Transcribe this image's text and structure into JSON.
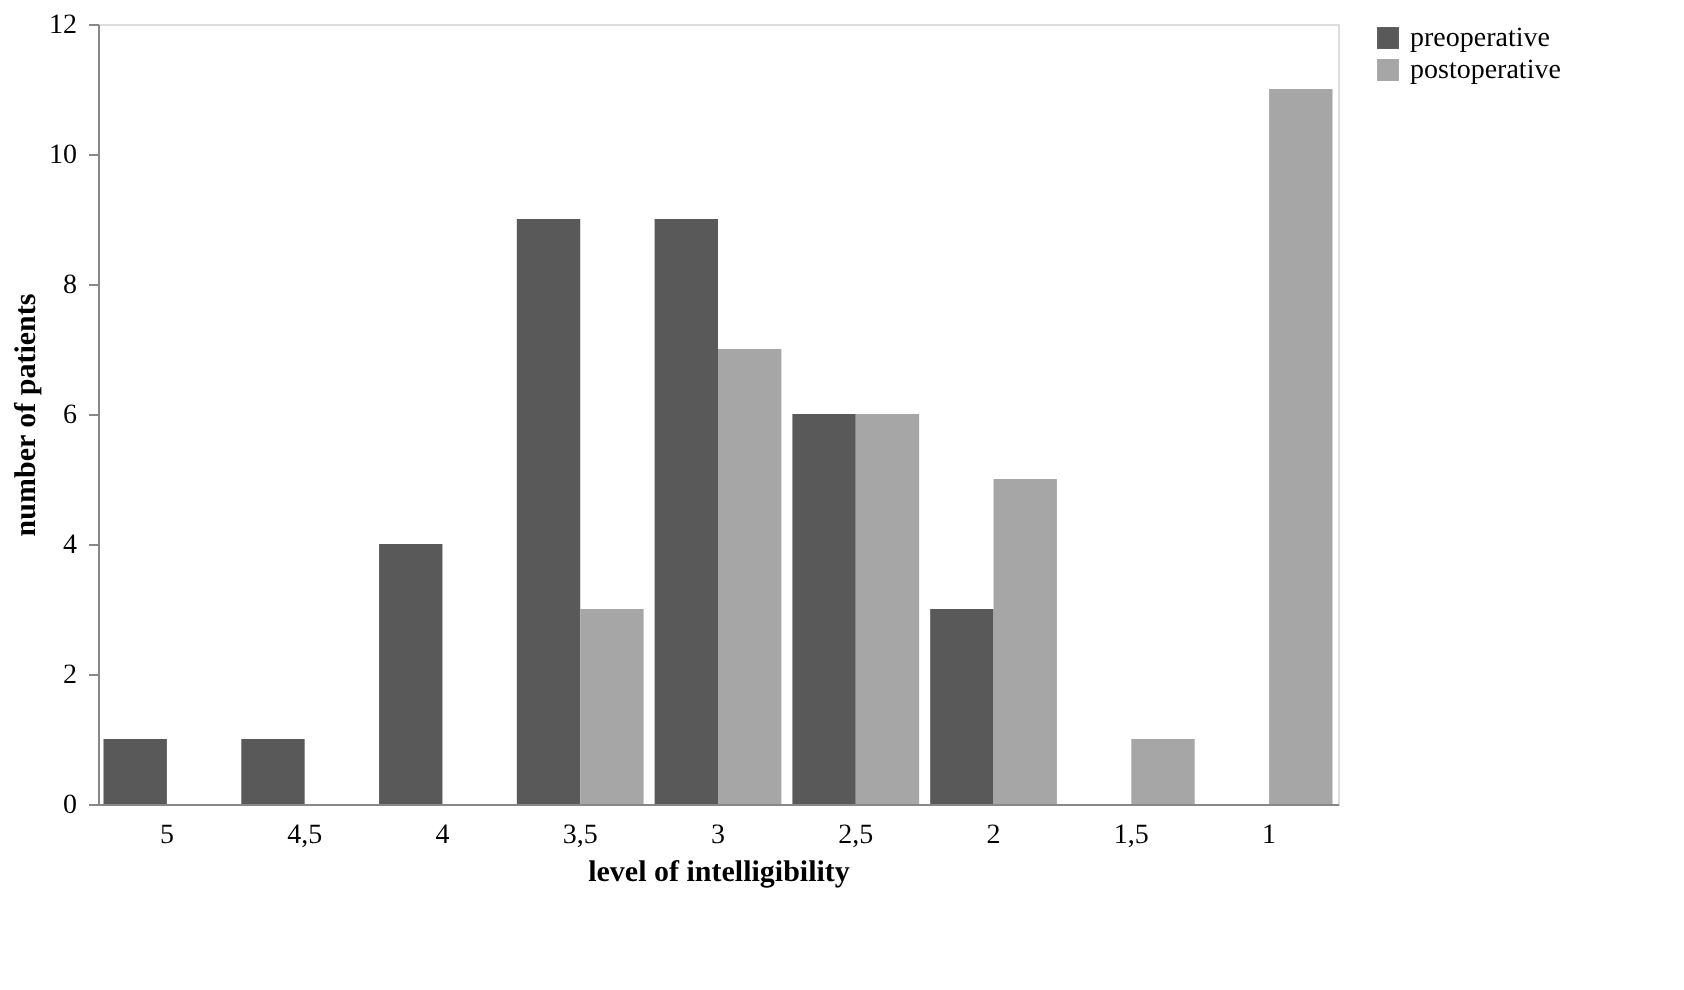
{
  "chart_data": {
    "type": "bar",
    "xlabel": "level of intelligibility",
    "ylabel": "number of patients",
    "categories": [
      "5",
      "4,5",
      "4",
      "3,5",
      "3",
      "2,5",
      "2",
      "1,5",
      "1"
    ],
    "series": [
      {
        "name": "preoperative",
        "color": "#595959",
        "values": [
          1,
          1,
          4,
          9,
          9,
          6,
          3,
          0,
          0
        ]
      },
      {
        "name": "postoperative",
        "color": "#a6a6a6",
        "values": [
          0,
          0,
          0,
          3,
          7,
          6,
          5,
          1,
          11
        ]
      }
    ],
    "ylim": [
      0,
      12
    ],
    "yticks": [
      0,
      2,
      4,
      6,
      8,
      10,
      12
    ],
    "grid": false,
    "legend": "right"
  }
}
